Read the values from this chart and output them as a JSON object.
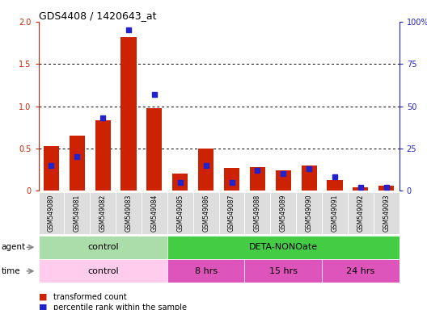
{
  "title": "GDS4408 / 1420643_at",
  "samples": [
    "GSM549080",
    "GSM549081",
    "GSM549082",
    "GSM549083",
    "GSM549084",
    "GSM549085",
    "GSM549086",
    "GSM549087",
    "GSM549088",
    "GSM549089",
    "GSM549090",
    "GSM549091",
    "GSM549092",
    "GSM549093"
  ],
  "red_values": [
    0.53,
    0.65,
    0.83,
    1.82,
    0.98,
    0.2,
    0.5,
    0.27,
    0.28,
    0.24,
    0.3,
    0.13,
    0.04,
    0.06
  ],
  "blue_values_pct": [
    15,
    20,
    43,
    95,
    57,
    5,
    15,
    5,
    12,
    10,
    13,
    8,
    2,
    2
  ],
  "ylim_left": [
    0,
    2
  ],
  "ylim_right": [
    0,
    100
  ],
  "yticks_left": [
    0,
    0.5,
    1.0,
    1.5,
    2.0
  ],
  "yticks_right": [
    0,
    25,
    50,
    75,
    100
  ],
  "ytick_labels_right": [
    "0",
    "25",
    "50",
    "75",
    "100%"
  ],
  "bar_color_red": "#cc2200",
  "bar_color_blue": "#2222cc",
  "color_agent_control": "#aaddaa",
  "color_agent_deta": "#44cc44",
  "color_time_control": "#ffccee",
  "color_time_8hrs": "#dd55bb",
  "color_time_15hrs": "#dd55bb",
  "color_time_24hrs": "#dd55bb",
  "bg_color": "#dddddd",
  "legend_red": "transformed count",
  "legend_blue": "percentile rank within the sample"
}
